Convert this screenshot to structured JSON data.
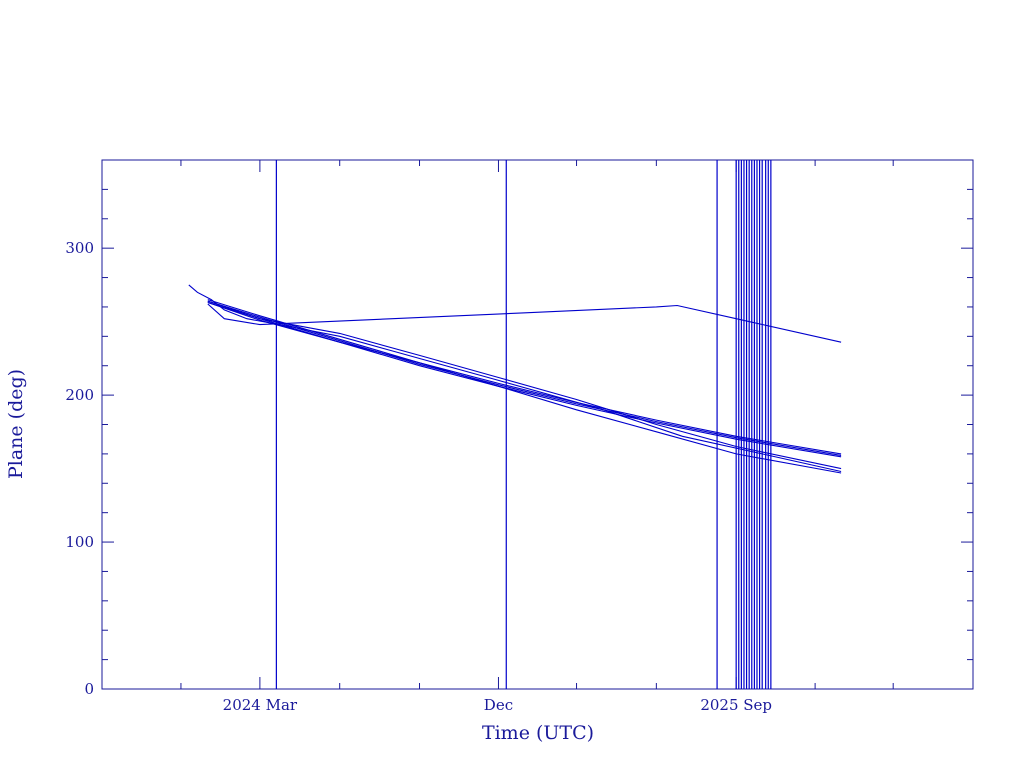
{
  "chart_data": {
    "type": "line",
    "title": "",
    "xlabel": "Time (UTC)",
    "ylabel": "Plane (deg)",
    "x_axis_type": "date",
    "xlim": [
      "2023-09-01",
      "2026-06-01"
    ],
    "ylim": [
      0,
      360
    ],
    "y_ticks": [
      0,
      100,
      200,
      300
    ],
    "y_tick_labels": [
      "0",
      "100",
      "200",
      "300"
    ],
    "x_ticks": [
      "2024-03-01",
      "2024-12-01",
      "2025-09-01"
    ],
    "x_tick_labels": [
      "2024 Mar",
      "Dec",
      "2025 Sep"
    ],
    "grid": false,
    "colors": {
      "axes": "#1a1a9a",
      "series": "#0000cc"
    },
    "series": [
      {
        "x": [
          "2023-12-10",
          "2023-12-20",
          "2024-01-05",
          "2024-01-20",
          "2024-02-15",
          "2024-04-01",
          "2024-06-01",
          "2024-08-01",
          "2024-12-01",
          "2025-04-01",
          "2025-07-01",
          "2025-10-01",
          "2025-12-31"
        ],
        "y": [
          275,
          270,
          265,
          258,
          252,
          247,
          240,
          230,
          210,
          190,
          172,
          160,
          148
        ]
      },
      {
        "x": [
          "2024-01-01",
          "2024-03-01",
          "2024-06-01",
          "2024-09-01",
          "2024-12-01",
          "2025-03-01",
          "2025-06-01",
          "2025-09-01",
          "2025-12-31"
        ],
        "y": [
          264,
          252,
          242,
          227,
          212,
          197,
          180,
          165,
          150
        ]
      },
      {
        "x": [
          "2024-01-01",
          "2024-03-01",
          "2024-06-01",
          "2024-09-01",
          "2024-12-01",
          "2025-03-01",
          "2025-06-01",
          "2025-09-01",
          "2025-12-31"
        ],
        "y": [
          263,
          251,
          236,
          222,
          206,
          190,
          175,
          160,
          147
        ]
      },
      {
        "x": [
          "2024-01-01",
          "2024-03-01",
          "2024-06-01",
          "2024-09-01",
          "2024-12-01",
          "2025-03-01",
          "2025-06-01",
          "2025-09-01",
          "2025-12-31"
        ],
        "y": [
          265,
          254,
          238,
          222,
          208,
          195,
          183,
          172,
          160
        ]
      },
      {
        "x": [
          "2024-01-01",
          "2024-03-01",
          "2024-06-01",
          "2024-09-01",
          "2024-12-01",
          "2025-03-01",
          "2025-06-01",
          "2025-09-01",
          "2025-12-31"
        ],
        "y": [
          264,
          253,
          237,
          221,
          207,
          194,
          182,
          171,
          159
        ]
      },
      {
        "x": [
          "2024-01-01",
          "2024-03-01",
          "2024-06-01",
          "2024-09-01",
          "2024-12-01",
          "2025-03-01",
          "2025-06-01",
          "2025-09-01",
          "2025-12-31"
        ],
        "y": [
          263,
          252,
          236,
          220,
          206,
          193,
          181,
          170,
          158
        ]
      },
      {
        "x": [
          "2024-01-01",
          "2024-01-20",
          "2024-03-01",
          "2024-08-01",
          "2025-01-01",
          "2025-06-01",
          "2025-06-25",
          "2025-09-01",
          "2025-12-31"
        ],
        "y": [
          262,
          252,
          248,
          252,
          256,
          260,
          261,
          252,
          236
        ]
      }
    ],
    "vertical_lines": [
      "2024-03-20",
      "2024-12-10",
      "2025-08-10",
      "2025-09-01",
      "2025-09-04",
      "2025-09-07",
      "2025-09-10",
      "2025-09-13",
      "2025-09-16",
      "2025-09-19",
      "2025-09-22",
      "2025-09-25",
      "2025-09-28",
      "2025-10-01",
      "2025-10-05",
      "2025-10-08",
      "2025-10-11"
    ]
  }
}
